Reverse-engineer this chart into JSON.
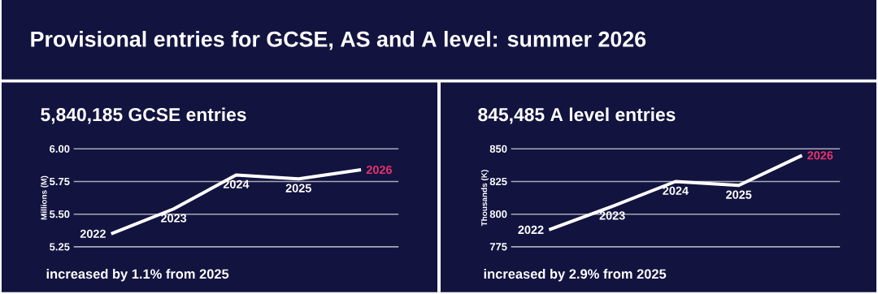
{
  "chart_data": [
    {
      "type": "other",
      "title": "Provisional entries for GCSE, AS and A level: summer 2026"
    },
    {
      "type": "line",
      "title": "5,840,185 GCSE entries",
      "ylabel": "Millions (M)",
      "categories": [
        "2022",
        "2023",
        "2024",
        "2025",
        "2026"
      ],
      "series": [
        {
          "color": "#ffffff",
          "values": [
            5.35,
            5.54,
            5.8,
            5.77,
            5.84
          ],
          "colors": [
            "#ffffff",
            "#ffffff",
            "#ffffff",
            "#ffffff",
            "#e8336b"
          ]
        }
      ],
      "ylim": [
        5.25,
        6.0
      ],
      "yticks": [
        {
          "value": 5.25,
          "label": "5.25"
        },
        {
          "value": 5.5,
          "label": "5.50"
        },
        {
          "value": 5.75,
          "label": "5.75"
        },
        {
          "value": 6.0,
          "label": "6.00"
        }
      ],
      "grid": "y",
      "marker": "none",
      "annotations": [
        "increased by 1.1% from 2025"
      ]
    },
    {
      "type": "line",
      "title": "845,485 A level entries",
      "ylabel": "Thousands (K)",
      "categories": [
        "2022",
        "2023",
        "2024",
        "2025",
        "2026"
      ],
      "series": [
        {
          "color": "#ffffff",
          "values": [
            788,
            806,
            825,
            822,
            845
          ],
          "colors": [
            "#ffffff",
            "#ffffff",
            "#ffffff",
            "#ffffff",
            "#e8336b"
          ]
        }
      ],
      "ylim": [
        775,
        850
      ],
      "yticks": [
        775,
        800,
        825,
        850
      ],
      "grid": "y",
      "marker": "none",
      "annotations": [
        "increased by 2.9% from 2025"
      ]
    }
  ]
}
